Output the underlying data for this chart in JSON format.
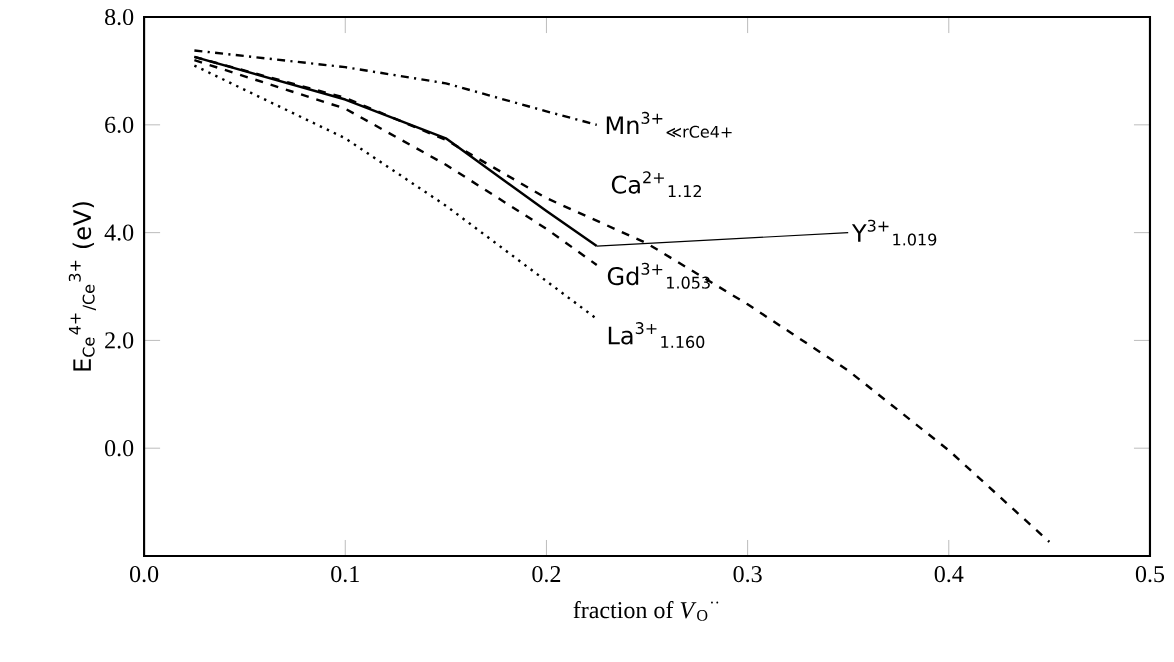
{
  "chart_data": {
    "type": "line",
    "xlabel": "fraction of *V*$_{O}$$^{··}$",
    "ylabel": "E$_{Ce}$$^{4+}$$_{/Ce}$$^{3+}$ (eV)",
    "xlim": [
      0,
      0.5
    ],
    "ylim": [
      -2,
      8
    ],
    "xticks": [
      {
        "value": 0,
        "label": "0.0"
      },
      {
        "value": 0.1,
        "label": "0.1"
      },
      {
        "value": 0.2,
        "label": "0.2"
      },
      {
        "value": 0.3,
        "label": "0.3"
      },
      {
        "value": 0.4,
        "label": "0.4"
      },
      {
        "value": 0.5,
        "label": "0.5"
      }
    ],
    "yticks": [
      {
        "value": 0,
        "label": "0.0"
      },
      {
        "value": 2,
        "label": "2.0"
      },
      {
        "value": 4,
        "label": "4.0"
      },
      {
        "value": 6,
        "label": "6.0"
      },
      {
        "value": 8,
        "label": "8.0"
      }
    ],
    "grid": false,
    "marker": "none",
    "series": [
      {
        "name": "Mn$^{3+}$$_{≪rCe4+}$",
        "color": "#000000",
        "line_style": "dashdot",
        "x": [
          0.025,
          0.1,
          0.15,
          0.2,
          0.225
        ],
        "values": [
          7.38,
          7.07,
          6.77,
          6.25,
          6.0
        ]
      },
      {
        "name": "Ca$^{2+}$$_{1.12}$",
        "color": "#000000",
        "line_style": "dashed",
        "x": [
          0.025,
          0.1,
          0.15,
          0.2,
          0.25,
          0.3,
          0.35,
          0.4,
          0.45
        ],
        "values": [
          7.26,
          6.5,
          5.72,
          4.64,
          3.8,
          2.67,
          1.44,
          -0.04,
          -1.74
        ]
      },
      {
        "name": "Y$^{3+}$$_{1.019}$",
        "color": "#000000",
        "line_style": "solid",
        "x": [
          0.025,
          0.1,
          0.15,
          0.2,
          0.225
        ],
        "values": [
          7.26,
          6.47,
          5.75,
          4.4,
          3.75
        ]
      },
      {
        "name": "Gd$^{3+}$$_{1.053}$",
        "color": "#000000",
        "line_style": "dashed",
        "x": [
          0.025,
          0.1,
          0.15,
          0.2,
          0.225
        ],
        "values": [
          7.2,
          6.3,
          5.26,
          4.07,
          3.4
        ]
      },
      {
        "name": "La$^{3+}$$_{1.160}$",
        "color": "#000000",
        "line_style": "dotted",
        "x": [
          0.025,
          0.1,
          0.15,
          0.2,
          0.225
        ],
        "values": [
          7.1,
          5.75,
          4.5,
          3.1,
          2.4
        ]
      }
    ]
  }
}
